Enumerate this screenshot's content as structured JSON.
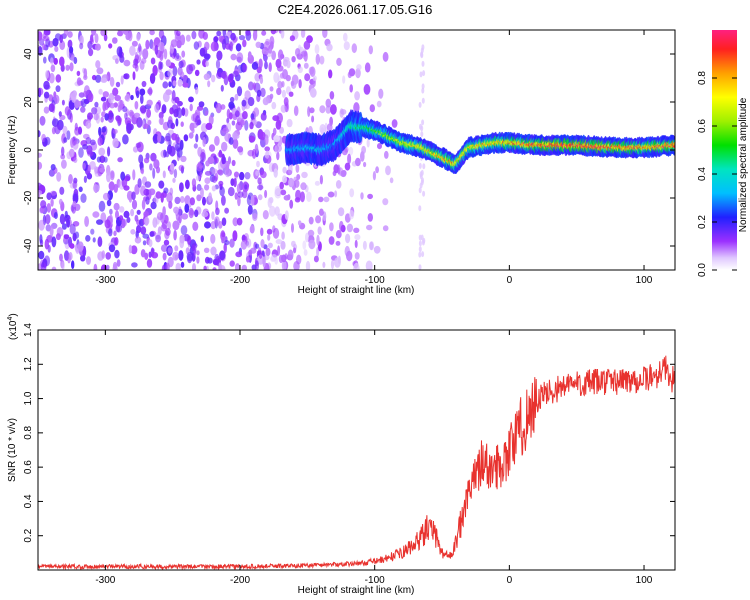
{
  "title": "C2E4.2026.061.17.05.G16",
  "colors": {
    "snr_line": "#e8322e",
    "axis": "#000000"
  },
  "chart_data": [
    {
      "type": "heatmap",
      "title": "C2E4.2026.061.17.05.G16",
      "xlabel": "Height of straight line (km)",
      "ylabel": "Frequency (Hz)",
      "xlim": [
        -350,
        123
      ],
      "ylim": [
        -50,
        50
      ],
      "xticks": [
        -300,
        -200,
        -100,
        0,
        100
      ],
      "yticks": [
        -40,
        -20,
        0,
        20,
        40
      ],
      "colorbar": {
        "label": "Normalized spectral amplitude",
        "range": [
          0,
          1
        ],
        "ticks": [
          0.0,
          0.2,
          0.4,
          0.6,
          0.8
        ],
        "tick_labels": [
          "0.0",
          "0.2",
          "0.4",
          "0.6",
          "0.8"
        ]
      },
      "ridge": {
        "description": "frequency ridge of strongest amplitude",
        "height_km": [
          -165,
          -150,
          -140,
          -130,
          -118,
          -105,
          -95,
          -80,
          -65,
          -50,
          -40,
          -30,
          -10,
          0,
          20,
          50,
          80,
          100,
          123
        ],
        "frequency_hz": [
          0,
          1,
          0,
          2,
          10,
          9,
          7,
          3,
          1,
          -3,
          -6,
          1,
          3,
          3,
          2,
          2,
          1,
          1,
          2
        ],
        "amplitude": [
          0.3,
          0.35,
          0.35,
          0.3,
          0.45,
          0.5,
          0.6,
          0.7,
          0.75,
          0.8,
          0.8,
          0.75,
          0.8,
          0.85,
          0.9,
          0.95,
          0.9,
          0.85,
          0.9
        ]
      },
      "noise_region_km": [
        -350,
        -100
      ]
    },
    {
      "type": "line",
      "xlabel": "Height of straight line (km)",
      "ylabel": "SNR (10 * v/v)",
      "y_multiplier_label": "(x10",
      "y_multiplier_exp": "4",
      "y_multiplier_close": ")",
      "xlim": [
        -350,
        123
      ],
      "ylim": [
        0,
        14000
      ],
      "xticks": [
        -300,
        -200,
        -100,
        0,
        100
      ],
      "yticks": [
        2000,
        4000,
        6000,
        8000,
        10000,
        12000,
        14000
      ],
      "ytick_labels": [
        "0.2",
        "0.4",
        "0.6",
        "0.8",
        "1.0",
        "1.2",
        "1.4"
      ],
      "series": [
        {
          "name": "SNR",
          "x": [
            -350,
            -300,
            -250,
            -200,
            -160,
            -140,
            -120,
            -110,
            -100,
            -90,
            -80,
            -70,
            -65,
            -60,
            -55,
            -50,
            -45,
            -40,
            -35,
            -30,
            -25,
            -20,
            -15,
            -10,
            -5,
            0,
            5,
            10,
            15,
            20,
            25,
            30,
            40,
            50,
            60,
            70,
            80,
            90,
            100,
            110,
            115,
            120,
            123
          ],
          "y": [
            200,
            200,
            200,
            200,
            250,
            300,
            350,
            400,
            500,
            700,
            1000,
            1500,
            2000,
            2500,
            2000,
            1000,
            800,
            1500,
            3000,
            4500,
            5500,
            6500,
            5800,
            6000,
            6300,
            7000,
            7800,
            8500,
            9200,
            9800,
            10200,
            10400,
            10700,
            10900,
            10900,
            11000,
            11000,
            11100,
            11100,
            11400,
            11900,
            11200,
            11000
          ]
        }
      ]
    }
  ]
}
